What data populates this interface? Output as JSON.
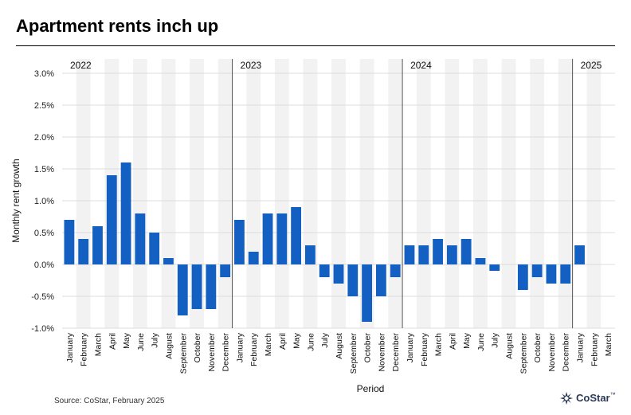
{
  "title": "Apartment rents inch up",
  "source": "Source: CoStar, February 2025",
  "logo": {
    "name": "CoStar",
    "tm": "™"
  },
  "colors": {
    "bar": "#1360c2",
    "band": "#f2f2f2",
    "grid": "#dcdcdc",
    "divider": "#555555"
  },
  "chart_data": {
    "type": "bar",
    "xlabel": "Period",
    "ylabel": "Monthly rent growth",
    "ylim": [
      -1.0,
      3.0
    ],
    "yticks": [
      "-1.0%",
      "-0.5%",
      "0.0%",
      "0.5%",
      "1.0%",
      "1.5%",
      "2.0%",
      "2.5%",
      "3.0%"
    ],
    "grid": true,
    "years": [
      "2022",
      "2023",
      "2024",
      "2025"
    ],
    "categories": [
      "January",
      "February",
      "March",
      "April",
      "May",
      "June",
      "July",
      "August",
      "September",
      "October",
      "November",
      "December",
      "January",
      "February",
      "March",
      "April",
      "May",
      "June",
      "July",
      "August",
      "September",
      "October",
      "November",
      "December",
      "January",
      "February",
      "March",
      "April",
      "May",
      "June",
      "July",
      "August",
      "September",
      "October",
      "November",
      "December",
      "January",
      "February",
      "March"
    ],
    "values": [
      0.7,
      0.4,
      0.6,
      1.4,
      1.6,
      0.8,
      0.5,
      0.1,
      -0.8,
      -0.7,
      -0.7,
      -0.2,
      0.7,
      0.2,
      0.8,
      0.8,
      0.9,
      0.3,
      -0.2,
      -0.3,
      -0.5,
      -0.9,
      -0.5,
      -0.2,
      0.3,
      0.3,
      0.4,
      0.3,
      0.4,
      0.1,
      -0.1,
      0.0,
      -0.4,
      -0.2,
      -0.3,
      -0.3,
      0.3,
      null,
      null
    ]
  }
}
